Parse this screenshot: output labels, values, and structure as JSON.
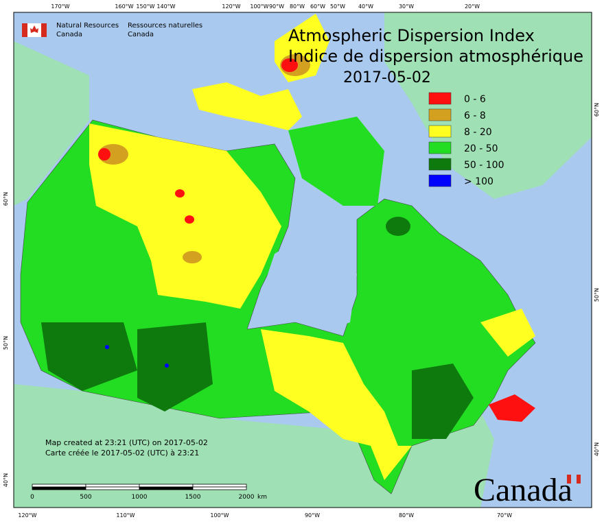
{
  "header": {
    "agency_en": [
      "Natural Resources",
      "Canada"
    ],
    "agency_fr": [
      "Ressources naturelles",
      "Canada"
    ]
  },
  "title": {
    "line1": "Atmospheric Dispersion Index",
    "line2": "Indice de dispersion atmosphérique",
    "date": "2017-05-02"
  },
  "legend": [
    {
      "label": "0 - 6",
      "color": "#ff1010"
    },
    {
      "label": "6 - 8",
      "color": "#d4a020"
    },
    {
      "label": "8 - 20",
      "color": "#ffff22"
    },
    {
      "label": "20 - 50",
      "color": "#22dd22"
    },
    {
      "label": "50 - 100",
      "color": "#0e7a0e"
    },
    {
      "label": "> 100",
      "color": "#0000ff"
    }
  ],
  "top_longitudes": [
    "170°W",
    "160°W",
    "150°W",
    "140°W",
    "120°W",
    "100°W",
    "90°W",
    "80°W",
    "60°W",
    "50°W",
    "40°W",
    "30°W",
    "20°W"
  ],
  "bottom_longitudes": [
    "120°W",
    "110°W",
    "100°W",
    "90°W",
    "80°W",
    "70°W"
  ],
  "left_latitudes": [
    "60°N",
    "50°N",
    "40°N"
  ],
  "right_latitudes": [
    "60°N",
    "50°N",
    "40°N"
  ],
  "credits": [
    "Map created at 23:21 (UTC) on 2017-05-02",
    "Carte créée le 2017-05-02 (UTC) à 23:21"
  ],
  "scale": {
    "labels": [
      "0",
      "500",
      "1000",
      "1500",
      "2000"
    ],
    "unit": "km"
  },
  "wordmark": "Canada"
}
